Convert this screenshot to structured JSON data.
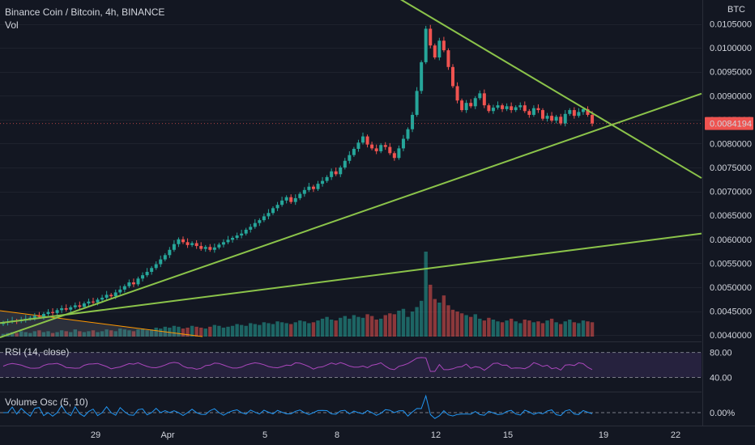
{
  "header": {
    "symbol_title": "Binance Coin / Bitcoin, 4h, BINANCE",
    "vol_label": "Vol"
  },
  "price_axis": {
    "currency": "BTC",
    "ticks": [
      "0.0105000",
      "0.0100000",
      "0.0095000",
      "0.0090000",
      "0.0085000",
      "0.0080000",
      "0.0075000",
      "0.0070000",
      "0.0065000",
      "0.0060000",
      "0.0055000",
      "0.0050000",
      "0.0045000",
      "0.0040000"
    ],
    "current_price": "0.0084194"
  },
  "rsi_pane": {
    "label": "RSI (14, close)",
    "ticks": [
      "80.00",
      "40.00"
    ]
  },
  "osc_pane": {
    "label": "Volume Osc (5, 10)",
    "ticks": [
      "0.00%"
    ]
  },
  "time_axis": {
    "ticks": [
      "29",
      "Apr",
      "5",
      "8",
      "12",
      "15",
      "19",
      "22"
    ]
  },
  "colors": {
    "background": "#131722",
    "up": "#26a69a",
    "down": "#ef5350",
    "trendline": "#8bc34a",
    "rsi_line": "#ab47bc",
    "osc_line": "#2196f3",
    "price_label_bg": "#ef5350"
  },
  "chart_data": {
    "type": "candlestick",
    "title": "Binance Coin / Bitcoin, 4h, BINANCE",
    "y_unit": "BTC",
    "ylim": [
      0.0039,
      0.011
    ],
    "x_ticks": [
      "29",
      "Apr",
      "5",
      "8",
      "12",
      "15",
      "19",
      "22"
    ],
    "close": [
      0.00426,
      0.00428,
      0.0043,
      0.00429,
      0.00432,
      0.00434,
      0.00436,
      0.0044,
      0.00438,
      0.00444,
      0.00448,
      0.00446,
      0.00452,
      0.00456,
      0.00453,
      0.00458,
      0.00462,
      0.00459,
      0.00466,
      0.0047,
      0.00468,
      0.00474,
      0.00478,
      0.00484,
      0.00481,
      0.00489,
      0.00495,
      0.00502,
      0.0051,
      0.00506,
      0.00518,
      0.00525,
      0.00532,
      0.0054,
      0.00548,
      0.00558,
      0.00567,
      0.00578,
      0.0059,
      0.006,
      0.00594,
      0.00588,
      0.00592,
      0.00586,
      0.0058,
      0.00584,
      0.00578,
      0.00583,
      0.00589,
      0.00594,
      0.00599,
      0.00603,
      0.00608,
      0.00612,
      0.0062,
      0.00626,
      0.00634,
      0.0064,
      0.00648,
      0.00655,
      0.00665,
      0.00672,
      0.00681,
      0.00688,
      0.00678,
      0.00686,
      0.00695,
      0.00703,
      0.0071,
      0.00705,
      0.00716,
      0.00722,
      0.0073,
      0.00742,
      0.00736,
      0.0075,
      0.00764,
      0.00776,
      0.00789,
      0.00802,
      0.00815,
      0.00798,
      0.0079,
      0.00784,
      0.00797,
      0.00793,
      0.0078,
      0.0077,
      0.0079,
      0.0081,
      0.0083,
      0.0086,
      0.0091,
      0.0097,
      0.0104,
      0.01005,
      0.0098,
      0.01015,
      0.00995,
      0.0096,
      0.0092,
      0.0089,
      0.0087,
      0.00885,
      0.00878,
      0.00895,
      0.00905,
      0.0088,
      0.00868,
      0.00875,
      0.0088,
      0.00872,
      0.00878,
      0.0087,
      0.00876,
      0.0088,
      0.00868,
      0.0086,
      0.00874,
      0.0087,
      0.00852,
      0.00858,
      0.00848,
      0.00856,
      0.00842,
      0.00862,
      0.0087,
      0.00858,
      0.00866,
      0.00872,
      0.0086,
      0.00842
    ],
    "volume": [
      3,
      4,
      5,
      4,
      6,
      5,
      4,
      6,
      7,
      5,
      6,
      4,
      5,
      7,
      6,
      5,
      8,
      6,
      5,
      6,
      7,
      5,
      6,
      8,
      7,
      6,
      9,
      8,
      7,
      6,
      8,
      9,
      7,
      8,
      10,
      9,
      11,
      10,
      12,
      11,
      9,
      10,
      12,
      11,
      10,
      9,
      11,
      13,
      12,
      10,
      11,
      12,
      14,
      13,
      12,
      15,
      14,
      13,
      16,
      15,
      14,
      17,
      16,
      15,
      14,
      16,
      18,
      17,
      15,
      16,
      18,
      20,
      22,
      19,
      18,
      21,
      23,
      20,
      24,
      22,
      21,
      25,
      23,
      19,
      20,
      24,
      26,
      25,
      29,
      31,
      22,
      28,
      33,
      40,
      95,
      58,
      42,
      38,
      46,
      35,
      30,
      28,
      26,
      24,
      22,
      25,
      20,
      18,
      21,
      19,
      17,
      16,
      18,
      20,
      17,
      15,
      19,
      18,
      16,
      17,
      15,
      18,
      20,
      16,
      14,
      17,
      19,
      16,
      15,
      18,
      17,
      16
    ],
    "trendlines": [
      {
        "from": [
          "start",
          0.00395
        ],
        "to": [
          "apex",
          0.00842
        ]
      },
      {
        "from": [
          "start",
          0.00425
        ],
        "to": [
          "end",
          0.00612
        ]
      },
      {
        "from": [
          "top",
          0.0112
        ],
        "to": [
          "end",
          0.00728
        ]
      }
    ],
    "rsi": {
      "ylim": [
        20,
        95
      ],
      "guide_levels": [
        80,
        40
      ]
    },
    "volume_osc": {
      "zero_level": 0
    }
  }
}
